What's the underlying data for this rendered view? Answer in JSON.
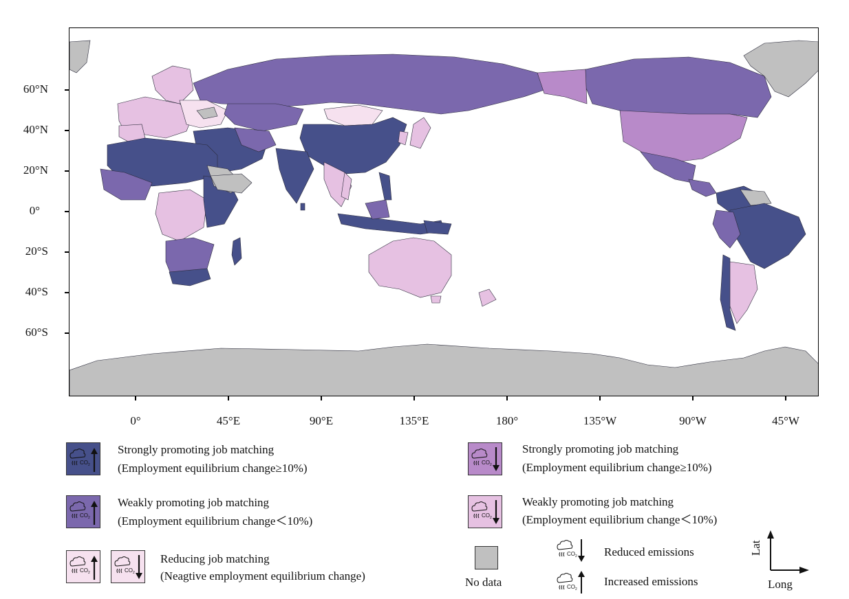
{
  "colors": {
    "strong_increase": "#46508a",
    "weak_increase": "#7b68ad",
    "strong_decrease": "#b88ac9",
    "weak_decrease": "#e6c1e2",
    "reducing": "#f6e1ef",
    "no_data": "#c0c0c0",
    "ocean": "#ffffff"
  },
  "axes": {
    "lat_labels": [
      "60°N",
      "40°N",
      "20°N",
      "0°",
      "20°S",
      "40°S",
      "60°S"
    ],
    "lon_labels": [
      "0°",
      "45°E",
      "90°E",
      "135°E",
      "180°",
      "135°W",
      "90°W",
      "45°W"
    ]
  },
  "legend": {
    "strong_increase": {
      "title": "Strongly promoting job matching",
      "subtitle": "(Employment equilibrium change≥10%)",
      "icon": "co2-up-icon"
    },
    "weak_increase": {
      "title": "Weakly promoting job matching",
      "subtitle": "(Employment equilibrium change＜10%)",
      "icon": "co2-up-icon"
    },
    "reducing": {
      "title": "Reducing job matching",
      "subtitle": "(Neagtive employment equilibrium change)",
      "icons": [
        "co2-up-icon",
        "co2-down-icon"
      ]
    },
    "strong_decrease": {
      "title": "Strongly promoting job matching",
      "subtitle": "(Employment equilibrium change≥10%)",
      "icon": "co2-down-icon"
    },
    "weak_decrease": {
      "title": "Weakly promoting job matching",
      "subtitle": "(Employment equilibrium change＜10%)",
      "icon": "co2-down-icon"
    },
    "no_data": "No data",
    "reduced_emissions": "Reduced emissions",
    "increased_emissions": "Increased emissions"
  },
  "compass": {
    "lat": "Lat",
    "long": "Long"
  }
}
